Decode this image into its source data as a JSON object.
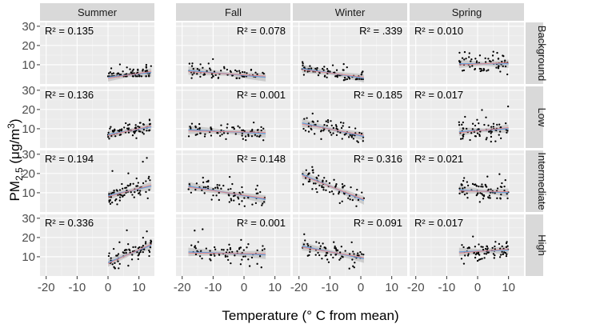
{
  "chart_data": {
    "type": "scatter",
    "xlabel": "Temperature (° C from mean)",
    "ylabel": "PM",
    "ylabel_sub": "2.5",
    "ylabel_units": " (μg/m",
    "ylabel_sup": "3",
    "ylabel_close": ")",
    "xlim": [
      -22,
      15
    ],
    "ylim": [
      0,
      32
    ],
    "xticks": [
      -20,
      -10,
      0,
      10
    ],
    "yticks": [
      10,
      20,
      30
    ],
    "columns": [
      "Summer",
      "Fall",
      "Winter",
      "Spring"
    ],
    "rows": [
      "Background",
      "Low",
      "Intermediate",
      "High"
    ],
    "trend_colors": {
      "fit": "#6a9fd8",
      "alt": "#f08080",
      "band": "#b0b0b0"
    },
    "panels": [
      {
        "row": 0,
        "col": 0,
        "r2": "R² = 0.135",
        "r2_pos": "left",
        "xrange": [
          0,
          14
        ],
        "fit": [
          3.5,
          6.0
        ],
        "scatter": [
          4,
          14,
          3
        ]
      },
      {
        "row": 0,
        "col": 1,
        "r2": "R² = 0.078",
        "r2_pos": "right",
        "xrange": [
          -18,
          7
        ],
        "fit": [
          7.0,
          3.5
        ],
        "scatter": [
          3,
          13,
          3
        ]
      },
      {
        "row": 0,
        "col": 2,
        "r2": "R² = .339",
        "r2_pos": "right",
        "xrange": [
          -19,
          1
        ],
        "fit": [
          8.0,
          3.0
        ],
        "scatter": [
          2,
          12,
          2
        ]
      },
      {
        "row": 0,
        "col": 3,
        "r2": "R² = 0.010",
        "r2_pos": "left",
        "xrange": [
          -6,
          10
        ],
        "fit": [
          10.5,
          10.5
        ],
        "scatter": [
          5,
          20,
          4
        ]
      },
      {
        "row": 1,
        "col": 0,
        "r2": "R² = 0.136",
        "r2_pos": "left",
        "xrange": [
          0,
          14
        ],
        "fit": [
          7.0,
          11.0
        ],
        "scatter": [
          4,
          19,
          3
        ]
      },
      {
        "row": 1,
        "col": 1,
        "r2": "R² = 0.001",
        "r2_pos": "right",
        "xrange": [
          -18,
          7
        ],
        "fit": [
          9.5,
          7.5
        ],
        "scatter": [
          4,
          15,
          3
        ]
      },
      {
        "row": 1,
        "col": 2,
        "r2": "R² = 0.185",
        "r2_pos": "right",
        "xrange": [
          -19,
          1
        ],
        "fit": [
          13.0,
          6.0
        ],
        "scatter": [
          3,
          19,
          4
        ]
      },
      {
        "row": 1,
        "col": 3,
        "r2": "R² = 0.017",
        "r2_pos": "left",
        "xrange": [
          -6,
          10
        ],
        "fit": [
          8.5,
          10.0
        ],
        "scatter": [
          2,
          22,
          4
        ]
      },
      {
        "row": 2,
        "col": 0,
        "r2": "R² = 0.194",
        "r2_pos": "left",
        "xrange": [
          0,
          14
        ],
        "fit": [
          8.5,
          13.5
        ],
        "scatter": [
          4,
          30,
          4
        ]
      },
      {
        "row": 2,
        "col": 1,
        "r2": "R² = 0.148",
        "r2_pos": "right",
        "xrange": [
          -18,
          7
        ],
        "fit": [
          13.5,
          6.5
        ],
        "scatter": [
          3,
          22,
          4
        ]
      },
      {
        "row": 2,
        "col": 2,
        "r2": "R² = 0.316",
        "r2_pos": "right",
        "xrange": [
          -19,
          1
        ],
        "fit": [
          19.5,
          6.0
        ],
        "scatter": [
          3,
          25,
          5
        ]
      },
      {
        "row": 2,
        "col": 3,
        "r2": "R² = 0.021",
        "r2_pos": "left",
        "xrange": [
          -6,
          10
        ],
        "fit": [
          11.5,
          10.0
        ],
        "scatter": [
          4,
          21,
          4
        ]
      },
      {
        "row": 3,
        "col": 0,
        "r2": "R² = 0.336",
        "r2_pos": "left",
        "xrange": [
          0,
          14
        ],
        "fit": [
          7.0,
          16.0
        ],
        "scatter": [
          4,
          26,
          5
        ]
      },
      {
        "row": 3,
        "col": 1,
        "r2": "R² = 0.001",
        "r2_pos": "right",
        "xrange": [
          -18,
          7
        ],
        "fit": [
          12.5,
          11.0
        ],
        "scatter": [
          3,
          25,
          4
        ]
      },
      {
        "row": 3,
        "col": 2,
        "r2": "R² = 0.091",
        "r2_pos": "right",
        "xrange": [
          -19,
          1
        ],
        "fit": [
          15.5,
          9.0
        ],
        "scatter": [
          2,
          24,
          5
        ]
      },
      {
        "row": 3,
        "col": 3,
        "r2": "R² = 0.017",
        "r2_pos": "left",
        "xrange": [
          -6,
          10
        ],
        "fit": [
          12.5,
          13.5
        ],
        "scatter": [
          4,
          23,
          4
        ]
      }
    ]
  }
}
